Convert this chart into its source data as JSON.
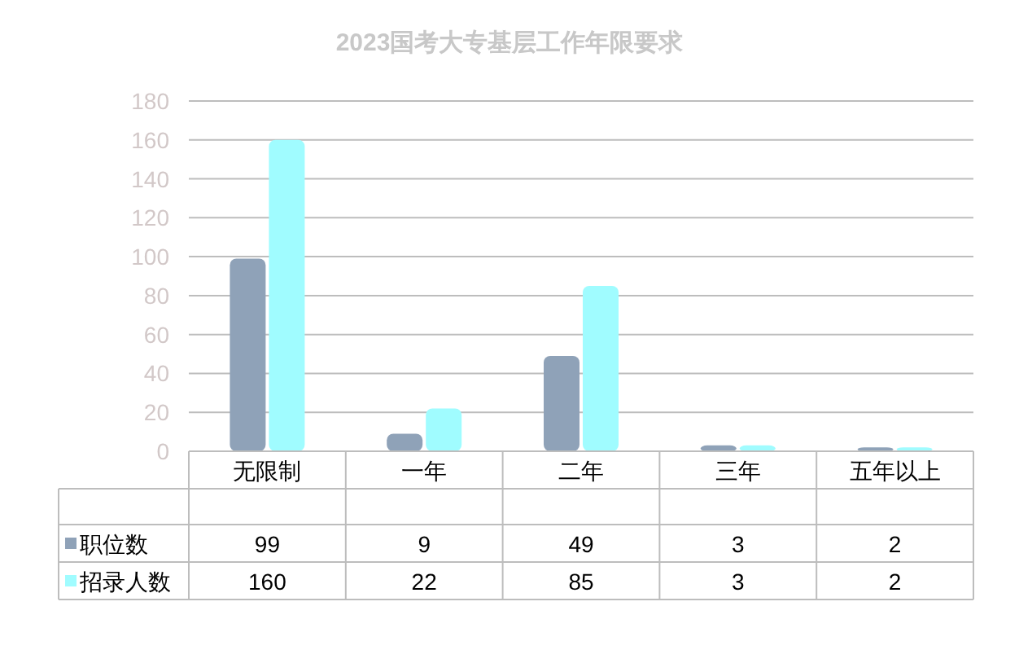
{
  "chart_data": {
    "type": "bar",
    "title": "2023国考大专基层工作年限要求",
    "categories": [
      "无限制",
      "一年",
      "二年",
      "三年",
      "五年以上"
    ],
    "series": [
      {
        "name": "职位数",
        "color": "#8fa2b8",
        "values": [
          99,
          9,
          49,
          3,
          2
        ]
      },
      {
        "name": "招录人数",
        "color": "#a0fcff",
        "values": [
          160,
          22,
          85,
          3,
          2
        ]
      }
    ],
    "ylim": [
      0,
      180
    ],
    "yticks": [
      0,
      20,
      40,
      60,
      80,
      100,
      120,
      140,
      160,
      180
    ],
    "grid": "y",
    "legend": "left",
    "data_labels": true
  }
}
